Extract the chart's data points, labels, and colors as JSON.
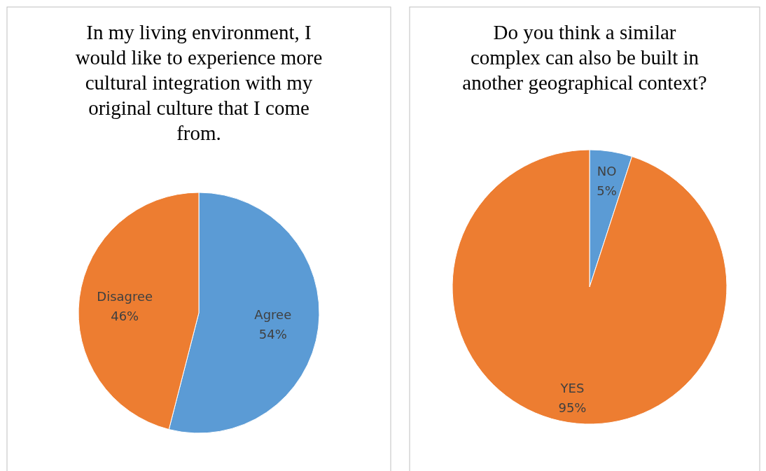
{
  "chart_data": [
    {
      "type": "pie",
      "title": "In my living environment, I would like to experience more cultural integration with my original culture that I come from.",
      "categories": [
        "Agree",
        "Disagree"
      ],
      "values": [
        54,
        46
      ],
      "value_labels": [
        "54%",
        "46%"
      ],
      "colors": [
        "#5b9bd5",
        "#ed7d31"
      ],
      "legend": false
    },
    {
      "type": "pie",
      "title": "Do you think a similar complex can also be built in another geographical context?",
      "categories": [
        "NO",
        "YES"
      ],
      "values": [
        5,
        95
      ],
      "value_labels": [
        "5%",
        "95%"
      ],
      "colors": [
        "#5b9bd5",
        "#ed7d31"
      ],
      "legend": false
    }
  ]
}
